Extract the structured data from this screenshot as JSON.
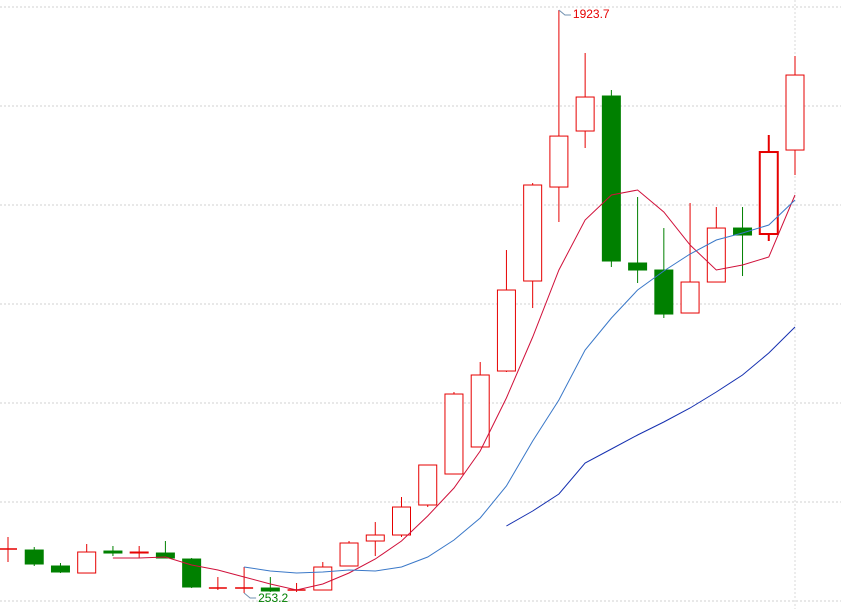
{
  "chart_data": {
    "type": "candlestick",
    "open": [
      379.3,
      376.4,
      330.6,
      310.5,
      373.5,
      367.8,
      367.8,
      350.6,
      267.5,
      267.5,
      267.5,
      261.8,
      261.8,
      330.6,
      402.2,
      419.4,
      505.4,
      594.2,
      671.6,
      889.3,
      1147.2,
      1416.5,
      1577.0,
      1677.3,
      1198.8,
      1178.7,
      1055.5,
      1144.3,
      1299.0,
      1281.9,
      1522.5
    ],
    "high": [
      413.7,
      385.0,
      339.2,
      393.6,
      387.9,
      387.9,
      402.2,
      353.5,
      299.0,
      327.7,
      299.0,
      281.9,
      342.0,
      402.2,
      456.6,
      528.3,
      620.0,
      829.1,
      915.1,
      1236.0,
      1428.0,
      1923.7,
      1800.5,
      1694.5,
      1387.9,
      1299.0,
      1370.7,
      1359.2,
      1359.2,
      1565.4,
      1791.9
    ],
    "low": [
      342.0,
      330.6,
      310.5,
      310.5,
      359.2,
      353.5,
      353.5,
      267.5,
      261.8,
      253.2,
      256.1,
      256.1,
      261.8,
      330.6,
      359.2,
      413.7,
      499.6,
      594.2,
      671.6,
      886.5,
      1069.8,
      1316.3,
      1528.3,
      1187.3,
      1141.5,
      1041.2,
      1055.5,
      1144.3,
      1161.5,
      1261.8,
      1450.9
    ],
    "close": [
      379.3,
      336.3,
      313.4,
      370.7,
      367.8,
      370.7,
      353.5,
      270.4,
      267.5,
      267.5,
      259.0,
      261.8,
      327.7,
      396.5,
      419.4,
      499.6,
      620.0,
      823.4,
      877.9,
      1121.4,
      1422.3,
      1562.5,
      1674.4,
      1204.5,
      1178.7,
      1052.6,
      1144.3,
      1299.0,
      1279.0,
      1516.8,
      1737.4
    ],
    "up_color": "#e60000",
    "down_color": "#008000",
    "lines": [
      {
        "color": "#d0103a",
        "values": [
          null,
          null,
          null,
          null,
          353.5,
          353.5,
          356.4,
          333.4,
          319.1,
          299.0,
          279.0,
          261.8,
          279.0,
          310.5,
          350.6,
          402.2,
          473.8,
          554.1,
          660.1,
          812.0,
          986.7,
          1178.7,
          1322.0,
          1393.6,
          1408.0,
          1344.9,
          1250.4,
          1178.7,
          1193.1,
          1216.0,
          1393.6
        ]
      },
      {
        "color": "#3a78c8",
        "values": [
          null,
          null,
          null,
          null,
          null,
          null,
          null,
          null,
          null,
          327.7,
          316.2,
          310.5,
          313.4,
          319.1,
          316.2,
          327.7,
          356.4,
          405.1,
          468.1,
          559.8,
          688.7,
          806.2,
          949.5,
          1041.2,
          1121.4,
          1175.9,
          1224.6,
          1264.7,
          1284.7,
          1307.7,
          1379.3
        ]
      },
      {
        "color": "#1530b0",
        "values": [
          null,
          null,
          null,
          null,
          null,
          null,
          null,
          null,
          null,
          null,
          null,
          null,
          null,
          null,
          null,
          null,
          null,
          null,
          null,
          445.2,
          488.2,
          536.9,
          625.7,
          665.8,
          705.9,
          743.2,
          783.3,
          829.1,
          877.9,
          940.9,
          1015.4
        ]
      }
    ],
    "high_label": "1923.7",
    "low_label": "253.2",
    "ylim": [
      207.4,
      1952.4
    ],
    "yticks": [
      230.3,
      513.9,
      797.6,
      1081.3,
      1364.9,
      1648.6,
      1932.3
    ],
    "grid": true
  }
}
